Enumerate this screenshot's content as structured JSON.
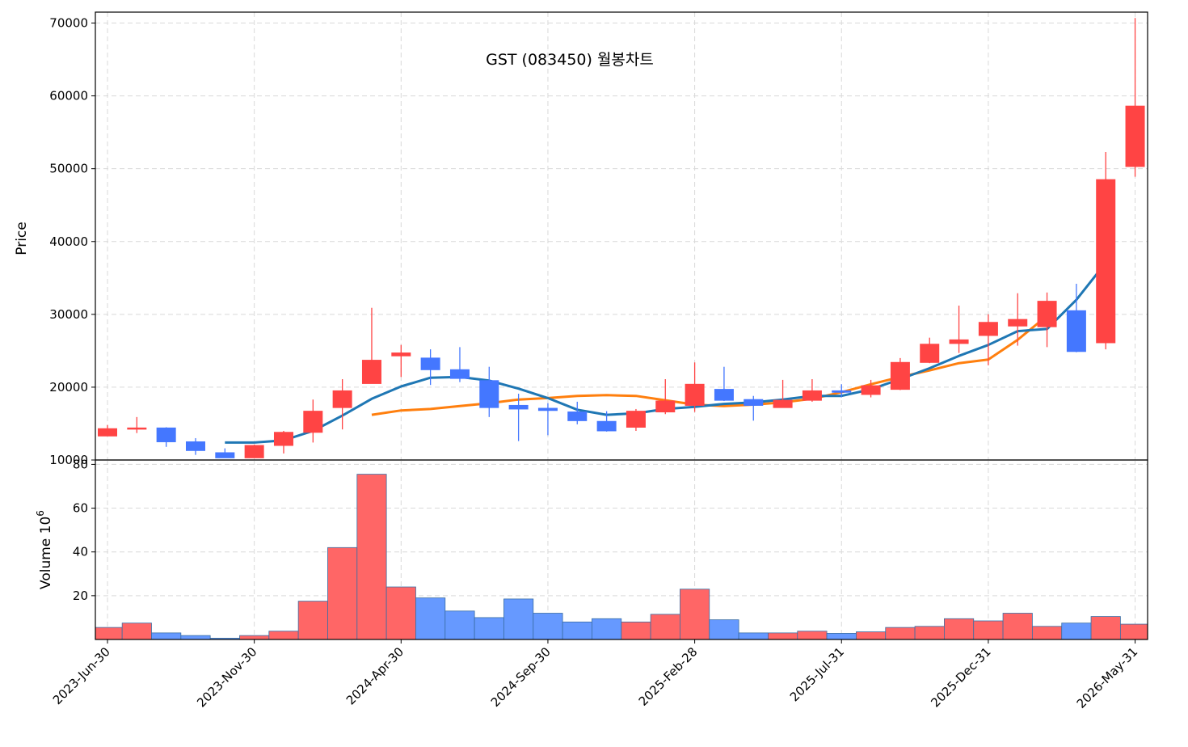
{
  "chart_data": {
    "type": "candlestick",
    "title": "GST (083450) 월봉차트",
    "price_ylabel": "Price",
    "volume_ylabel": "Volume",
    "volume_unit_exp": "6",
    "price_ylim": [
      10000,
      71500
    ],
    "volume_ylim": [
      0,
      82
    ],
    "price_yticks": [
      10000,
      20000,
      30000,
      40000,
      50000,
      60000,
      70000
    ],
    "volume_yticks": [
      20,
      40,
      60,
      80
    ],
    "grid": true,
    "colors": {
      "up": "#ff4444",
      "down": "#4477ff",
      "vol_up": "#ff6666",
      "vol_down": "#6699ff",
      "ma5": "#1f77b4",
      "ma10": "#ff7f0e"
    },
    "x_tick_labels": [
      {
        "index": 0,
        "label": "2023-Jun-30"
      },
      {
        "index": 5,
        "label": "2023-Nov-30"
      },
      {
        "index": 10,
        "label": "2024-Apr-30"
      },
      {
        "index": 15,
        "label": "2024-Sep-30"
      },
      {
        "index": 20,
        "label": "2025-Feb-28"
      },
      {
        "index": 25,
        "label": "2025-Jul-31"
      },
      {
        "index": 30,
        "label": "2025-Dec-31"
      },
      {
        "index": 35,
        "label": "2026-May-31"
      }
    ],
    "candles": [
      {
        "o": 13300,
        "h": 14800,
        "l": 13300,
        "c": 14300,
        "v": 5.5
      },
      {
        "o": 14300,
        "h": 15900,
        "l": 13700,
        "c": 14400,
        "v": 7.5
      },
      {
        "o": 14400,
        "h": 14500,
        "l": 11800,
        "c": 12500,
        "v": 3.0
      },
      {
        "o": 12500,
        "h": 13000,
        "l": 10700,
        "c": 11300,
        "v": 1.8
      },
      {
        "o": 11000,
        "h": 11600,
        "l": 10300,
        "c": 10300,
        "v": 0.6
      },
      {
        "o": 10300,
        "h": 12100,
        "l": 10300,
        "c": 12000,
        "v": 1.8
      },
      {
        "o": 12000,
        "h": 14000,
        "l": 10900,
        "c": 13800,
        "v": 3.8
      },
      {
        "o": 13800,
        "h": 18300,
        "l": 12400,
        "c": 16700,
        "v": 17.5
      },
      {
        "o": 17200,
        "h": 21100,
        "l": 14200,
        "c": 19500,
        "v": 42.0
      },
      {
        "o": 20500,
        "h": 30900,
        "l": 20500,
        "c": 23700,
        "v": 75.5
      },
      {
        "o": 24300,
        "h": 25800,
        "l": 21400,
        "c": 24700,
        "v": 24.0
      },
      {
        "o": 24000,
        "h": 25200,
        "l": 20300,
        "c": 22400,
        "v": 19.0
      },
      {
        "o": 22400,
        "h": 25500,
        "l": 20700,
        "c": 21200,
        "v": 13.0
      },
      {
        "o": 20900,
        "h": 22800,
        "l": 15900,
        "c": 17200,
        "v": 10.0
      },
      {
        "o": 17500,
        "h": 19100,
        "l": 12600,
        "c": 17000,
        "v": 18.5
      },
      {
        "o": 17100,
        "h": 17800,
        "l": 13400,
        "c": 16800,
        "v": 12.0
      },
      {
        "o": 16600,
        "h": 18000,
        "l": 14900,
        "c": 15400,
        "v": 8.0
      },
      {
        "o": 15300,
        "h": 16700,
        "l": 13900,
        "c": 14000,
        "v": 9.5
      },
      {
        "o": 14500,
        "h": 17000,
        "l": 14000,
        "c": 16700,
        "v": 8.0
      },
      {
        "o": 16600,
        "h": 21100,
        "l": 16300,
        "c": 18100,
        "v": 11.5
      },
      {
        "o": 17500,
        "h": 23400,
        "l": 16600,
        "c": 20400,
        "v": 23.0
      },
      {
        "o": 19700,
        "h": 22800,
        "l": 18100,
        "c": 18200,
        "v": 9.0
      },
      {
        "o": 18300,
        "h": 18800,
        "l": 15400,
        "c": 17500,
        "v": 3.0
      },
      {
        "o": 17200,
        "h": 21000,
        "l": 17200,
        "c": 18200,
        "v": 3.0
      },
      {
        "o": 18200,
        "h": 21100,
        "l": 18000,
        "c": 19500,
        "v": 3.8
      },
      {
        "o": 19500,
        "h": 20400,
        "l": 18600,
        "c": 19300,
        "v": 2.8
      },
      {
        "o": 19000,
        "h": 21000,
        "l": 18600,
        "c": 20200,
        "v": 3.5
      },
      {
        "o": 19700,
        "h": 24000,
        "l": 19600,
        "c": 23400,
        "v": 5.5
      },
      {
        "o": 23400,
        "h": 26800,
        "l": 23300,
        "c": 25900,
        "v": 6.0
      },
      {
        "o": 26000,
        "h": 31200,
        "l": 24700,
        "c": 26500,
        "v": 9.5
      },
      {
        "o": 27100,
        "h": 30000,
        "l": 23000,
        "c": 28900,
        "v": 8.5
      },
      {
        "o": 28400,
        "h": 32900,
        "l": 25700,
        "c": 29300,
        "v": 12.0
      },
      {
        "o": 28300,
        "h": 33000,
        "l": 25500,
        "c": 31800,
        "v": 6.0
      },
      {
        "o": 30500,
        "h": 34200,
        "l": 24800,
        "c": 24900,
        "v": 7.5
      },
      {
        "o": 26100,
        "h": 52300,
        "l": 25200,
        "c": 48500,
        "v": 10.5
      },
      {
        "o": 50300,
        "h": 70700,
        "l": 48900,
        "c": 58600,
        "v": 7.0
      }
    ],
    "ma5": [
      null,
      null,
      null,
      null,
      12400,
      12400,
      12700,
      14000,
      16100,
      18400,
      20100,
      21300,
      21400,
      20900,
      19800,
      18500,
      16900,
      16200,
      16400,
      17000,
      17300,
      17700,
      17900,
      18300,
      18800,
      18800,
      19700,
      21100,
      22600,
      24300,
      25800,
      27700,
      28000,
      32000,
      37100,
      null
    ],
    "ma10": [
      null,
      null,
      null,
      null,
      null,
      null,
      null,
      null,
      null,
      16200,
      16800,
      17000,
      17400,
      17800,
      18300,
      18500,
      18800,
      18900,
      18800,
      18200,
      17600,
      17400,
      17600,
      17900,
      18400,
      19300,
      20400,
      21400,
      22300,
      23300,
      23800,
      26500,
      29800,
      null,
      null,
      null
    ]
  }
}
